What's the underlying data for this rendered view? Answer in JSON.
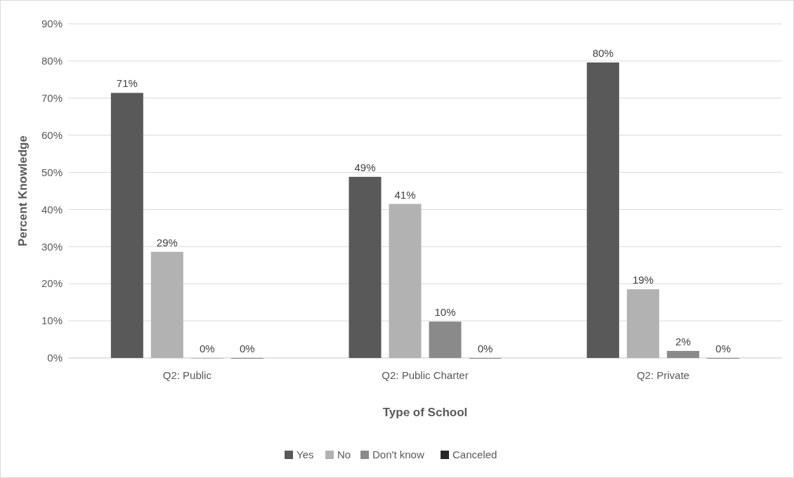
{
  "chart_data": {
    "type": "bar",
    "xlabel": "Type of School",
    "ylabel": "Percent  Knowledge",
    "categories": [
      "Q2: Public",
      "Q2: Public Charter",
      "Q2: Private"
    ],
    "series": [
      {
        "name": "Yes",
        "color": "#595959",
        "values": [
          71.4,
          48.8,
          79.6
        ],
        "value_labels": [
          "71%",
          "49%",
          "80%"
        ]
      },
      {
        "name": "No",
        "color": "#b2b2b2",
        "values": [
          28.6,
          41.5,
          18.5
        ],
        "value_labels": [
          "29%",
          "41%",
          "19%"
        ]
      },
      {
        "name": "Don't know",
        "color": "#8a8a8a",
        "values": [
          0,
          9.8,
          1.9
        ],
        "value_labels": [
          "0%",
          "10%",
          "2%"
        ]
      },
      {
        "name": "Canceled",
        "color": "#262626",
        "values": [
          0,
          0,
          0
        ],
        "value_labels": [
          "0%",
          "0%",
          "0%"
        ]
      }
    ],
    "ylim": [
      0,
      90
    ],
    "yticks": [
      {
        "value": 0,
        "label": "0%"
      },
      {
        "value": 10,
        "label": "10%"
      },
      {
        "value": 20,
        "label": "20%"
      },
      {
        "value": 30,
        "label": "30%"
      },
      {
        "value": 40,
        "label": "40%"
      },
      {
        "value": 50,
        "label": "50%"
      },
      {
        "value": 60,
        "label": "60%"
      },
      {
        "value": 70,
        "label": "70%"
      },
      {
        "value": 80,
        "label": "80%"
      },
      {
        "value": 90,
        "label": "90%"
      }
    ],
    "grid": "y",
    "legend": "bottom"
  }
}
